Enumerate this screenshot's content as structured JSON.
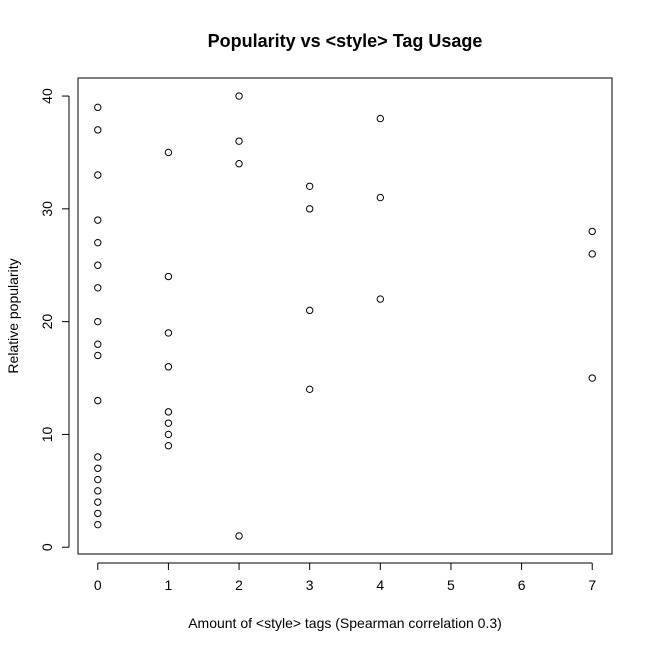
{
  "chart_data": {
    "type": "scatter",
    "title": "Popularity vs <style> Tag Usage",
    "xlabel": "Amount of <style> tags (Spearman correlation 0.3)",
    "ylabel": "Relative popularity",
    "xlim": [
      -0.28,
      7.28
    ],
    "ylim": [
      -0.6,
      41.6
    ],
    "xticks": [
      0,
      1,
      2,
      3,
      4,
      5,
      6,
      7
    ],
    "yticks": [
      0,
      10,
      20,
      30,
      40
    ],
    "grid": false,
    "legend": "none",
    "point_color": "#000000",
    "points": [
      {
        "x": 0,
        "y": 39
      },
      {
        "x": 0,
        "y": 37
      },
      {
        "x": 0,
        "y": 33
      },
      {
        "x": 0,
        "y": 29
      },
      {
        "x": 0,
        "y": 27
      },
      {
        "x": 0,
        "y": 25
      },
      {
        "x": 0,
        "y": 23
      },
      {
        "x": 0,
        "y": 20
      },
      {
        "x": 0,
        "y": 18
      },
      {
        "x": 0,
        "y": 17
      },
      {
        "x": 0,
        "y": 13
      },
      {
        "x": 0,
        "y": 8
      },
      {
        "x": 0,
        "y": 7
      },
      {
        "x": 0,
        "y": 6
      },
      {
        "x": 0,
        "y": 5
      },
      {
        "x": 0,
        "y": 4
      },
      {
        "x": 0,
        "y": 3
      },
      {
        "x": 0,
        "y": 2
      },
      {
        "x": 1,
        "y": 35
      },
      {
        "x": 1,
        "y": 24
      },
      {
        "x": 1,
        "y": 19
      },
      {
        "x": 1,
        "y": 16
      },
      {
        "x": 1,
        "y": 12
      },
      {
        "x": 1,
        "y": 11
      },
      {
        "x": 1,
        "y": 10
      },
      {
        "x": 1,
        "y": 9
      },
      {
        "x": 2,
        "y": 40
      },
      {
        "x": 2,
        "y": 36
      },
      {
        "x": 2,
        "y": 34
      },
      {
        "x": 2,
        "y": 1
      },
      {
        "x": 3,
        "y": 32
      },
      {
        "x": 3,
        "y": 30
      },
      {
        "x": 3,
        "y": 21
      },
      {
        "x": 3,
        "y": 14
      },
      {
        "x": 4,
        "y": 38
      },
      {
        "x": 4,
        "y": 31
      },
      {
        "x": 4,
        "y": 22
      },
      {
        "x": 7,
        "y": 28
      },
      {
        "x": 7,
        "y": 26
      },
      {
        "x": 7,
        "y": 15
      }
    ]
  }
}
